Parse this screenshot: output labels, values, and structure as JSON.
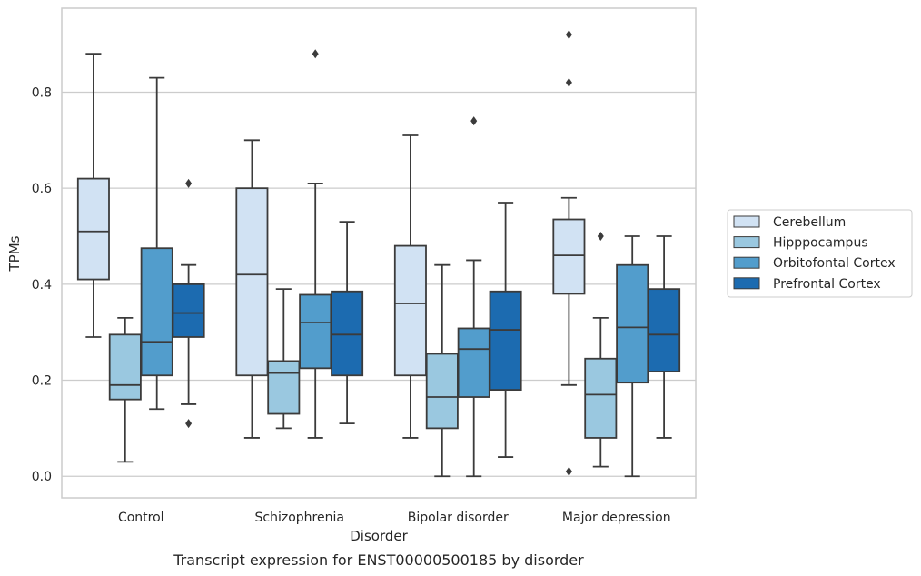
{
  "chart_data": {
    "type": "boxplot",
    "xlabel": "Disorder",
    "ylabel": "TPMs",
    "caption": "Transcript expression for ENST00000500185 by disorder",
    "ylim": [
      -0.045,
      0.975
    ],
    "yticks": [
      "0.0",
      "0.2",
      "0.4",
      "0.6",
      "0.8"
    ],
    "grid": "horizontal",
    "legend_position": "right",
    "colors": {
      "Cerebellum": "#d1e2f3",
      "Hipppocampus": "#9ac8e0",
      "Orbitofontal Cortex": "#529dcc",
      "Prefrontal Cortex": "#1c6bb0",
      "line": "#3b3b3b",
      "grid": "#cccccc",
      "frame": "#cccccc"
    },
    "categories": [
      "Control",
      "Schizophrenia",
      "Bipolar disorder",
      "Major depression"
    ],
    "series": [
      {
        "name": "Cerebellum",
        "boxes": [
          {
            "whislo": 0.29,
            "q1": 0.41,
            "med": 0.51,
            "q3": 0.62,
            "whishi": 0.88,
            "fliers": []
          },
          {
            "whislo": 0.08,
            "q1": 0.21,
            "med": 0.42,
            "q3": 0.6,
            "whishi": 0.7,
            "fliers": []
          },
          {
            "whislo": 0.08,
            "q1": 0.21,
            "med": 0.36,
            "q3": 0.48,
            "whishi": 0.71,
            "fliers": []
          },
          {
            "whislo": 0.19,
            "q1": 0.38,
            "med": 0.46,
            "q3": 0.535,
            "whishi": 0.58,
            "fliers": [
              0.92,
              0.82,
              0.01
            ]
          }
        ]
      },
      {
        "name": "Hipppocampus",
        "boxes": [
          {
            "whislo": 0.03,
            "q1": 0.16,
            "med": 0.19,
            "q3": 0.295,
            "whishi": 0.33,
            "fliers": []
          },
          {
            "whislo": 0.1,
            "q1": 0.13,
            "med": 0.215,
            "q3": 0.24,
            "whishi": 0.39,
            "fliers": []
          },
          {
            "whislo": 0.0,
            "q1": 0.1,
            "med": 0.165,
            "q3": 0.255,
            "whishi": 0.44,
            "fliers": []
          },
          {
            "whislo": 0.02,
            "q1": 0.08,
            "med": 0.17,
            "q3": 0.245,
            "whishi": 0.33,
            "fliers": [
              0.5
            ]
          }
        ]
      },
      {
        "name": "Orbitofontal Cortex",
        "boxes": [
          {
            "whislo": 0.14,
            "q1": 0.21,
            "med": 0.28,
            "q3": 0.475,
            "whishi": 0.83,
            "fliers": []
          },
          {
            "whislo": 0.08,
            "q1": 0.225,
            "med": 0.32,
            "q3": 0.378,
            "whishi": 0.61,
            "fliers": [
              0.88
            ]
          },
          {
            "whislo": 0.0,
            "q1": 0.165,
            "med": 0.265,
            "q3": 0.308,
            "whishi": 0.45,
            "fliers": [
              0.74
            ]
          },
          {
            "whislo": 0.0,
            "q1": 0.195,
            "med": 0.31,
            "q3": 0.44,
            "whishi": 0.5,
            "fliers": []
          }
        ]
      },
      {
        "name": "Prefrontal Cortex",
        "boxes": [
          {
            "whislo": 0.15,
            "q1": 0.29,
            "med": 0.34,
            "q3": 0.4,
            "whishi": 0.44,
            "fliers": [
              0.61,
              0.11
            ]
          },
          {
            "whislo": 0.11,
            "q1": 0.21,
            "med": 0.295,
            "q3": 0.385,
            "whishi": 0.53,
            "fliers": []
          },
          {
            "whislo": 0.04,
            "q1": 0.18,
            "med": 0.305,
            "q3": 0.385,
            "whishi": 0.57,
            "fliers": []
          },
          {
            "whislo": 0.08,
            "q1": 0.218,
            "med": 0.295,
            "q3": 0.39,
            "whishi": 0.5,
            "fliers": []
          }
        ]
      }
    ]
  }
}
